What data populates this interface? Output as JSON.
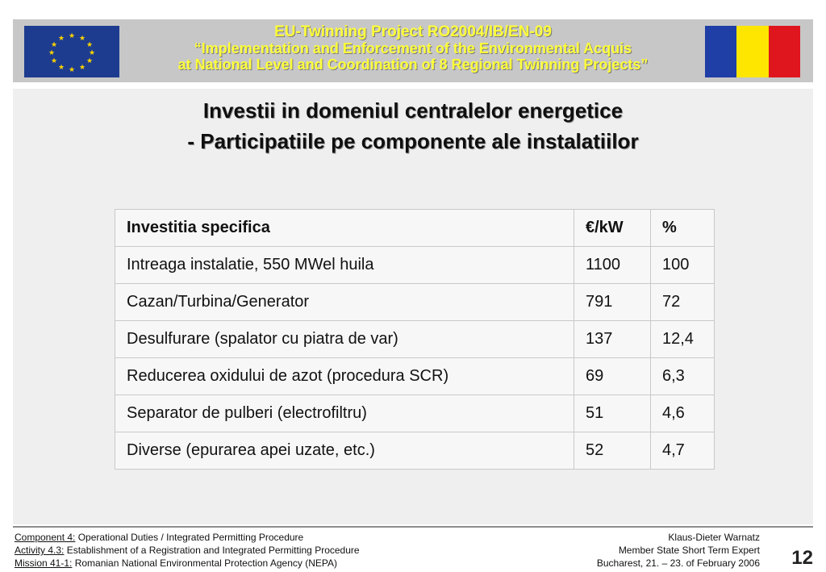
{
  "header": {
    "line1": "EU-Twinning  Project  RO2004/IB/EN-09",
    "line2": "“Implementation and Enforcement of the Environmental Acquis",
    "line3": "at National Level and Coordination of 8 Regional Twinning Projects”",
    "text_color": "#ffff3a",
    "eu_flag_icon": "eu-flag-icon",
    "ro_flag_icon": "romania-flag-icon"
  },
  "title": {
    "line1": "Investii in domeniul centralelor energetice",
    "line2": "- Participatiile pe componente ale instalatiilor"
  },
  "table": {
    "header": [
      "Investitia specifica",
      "€/kW",
      "%"
    ],
    "rows": [
      [
        "Intreaga instalatie, 550 MWel huila",
        "1100",
        "100"
      ],
      [
        "Cazan/Turbina/Generator",
        "791",
        "72"
      ],
      [
        "Desulfurare (spalator cu piatra de var)",
        "137",
        "12,4"
      ],
      [
        "Reducerea oxidului de azot (procedura SCR)",
        "69",
        "6,3"
      ],
      [
        "Separator de pulberi (electrofiltru)",
        "51",
        "4,6"
      ],
      [
        "Diverse (epurarea apei uzate, etc.)",
        "52",
        "4,7"
      ]
    ]
  },
  "footer": {
    "left": [
      {
        "label": "Component 4:",
        "text": " Operational Duties / Integrated Permitting Procedure"
      },
      {
        "label": "Activity 4.3:",
        "text": " Establishment of a Registration and Integrated Permitting Procedure"
      },
      {
        "label": "Mission 41-1:",
        "text": " Romanian National Environmental Protection Agency (NEPA)"
      }
    ],
    "right": [
      "Klaus-Dieter Warnatz",
      "Member State Short Term Expert",
      "Bucharest,  21. – 23. of February  2006"
    ],
    "page_number": "12"
  }
}
